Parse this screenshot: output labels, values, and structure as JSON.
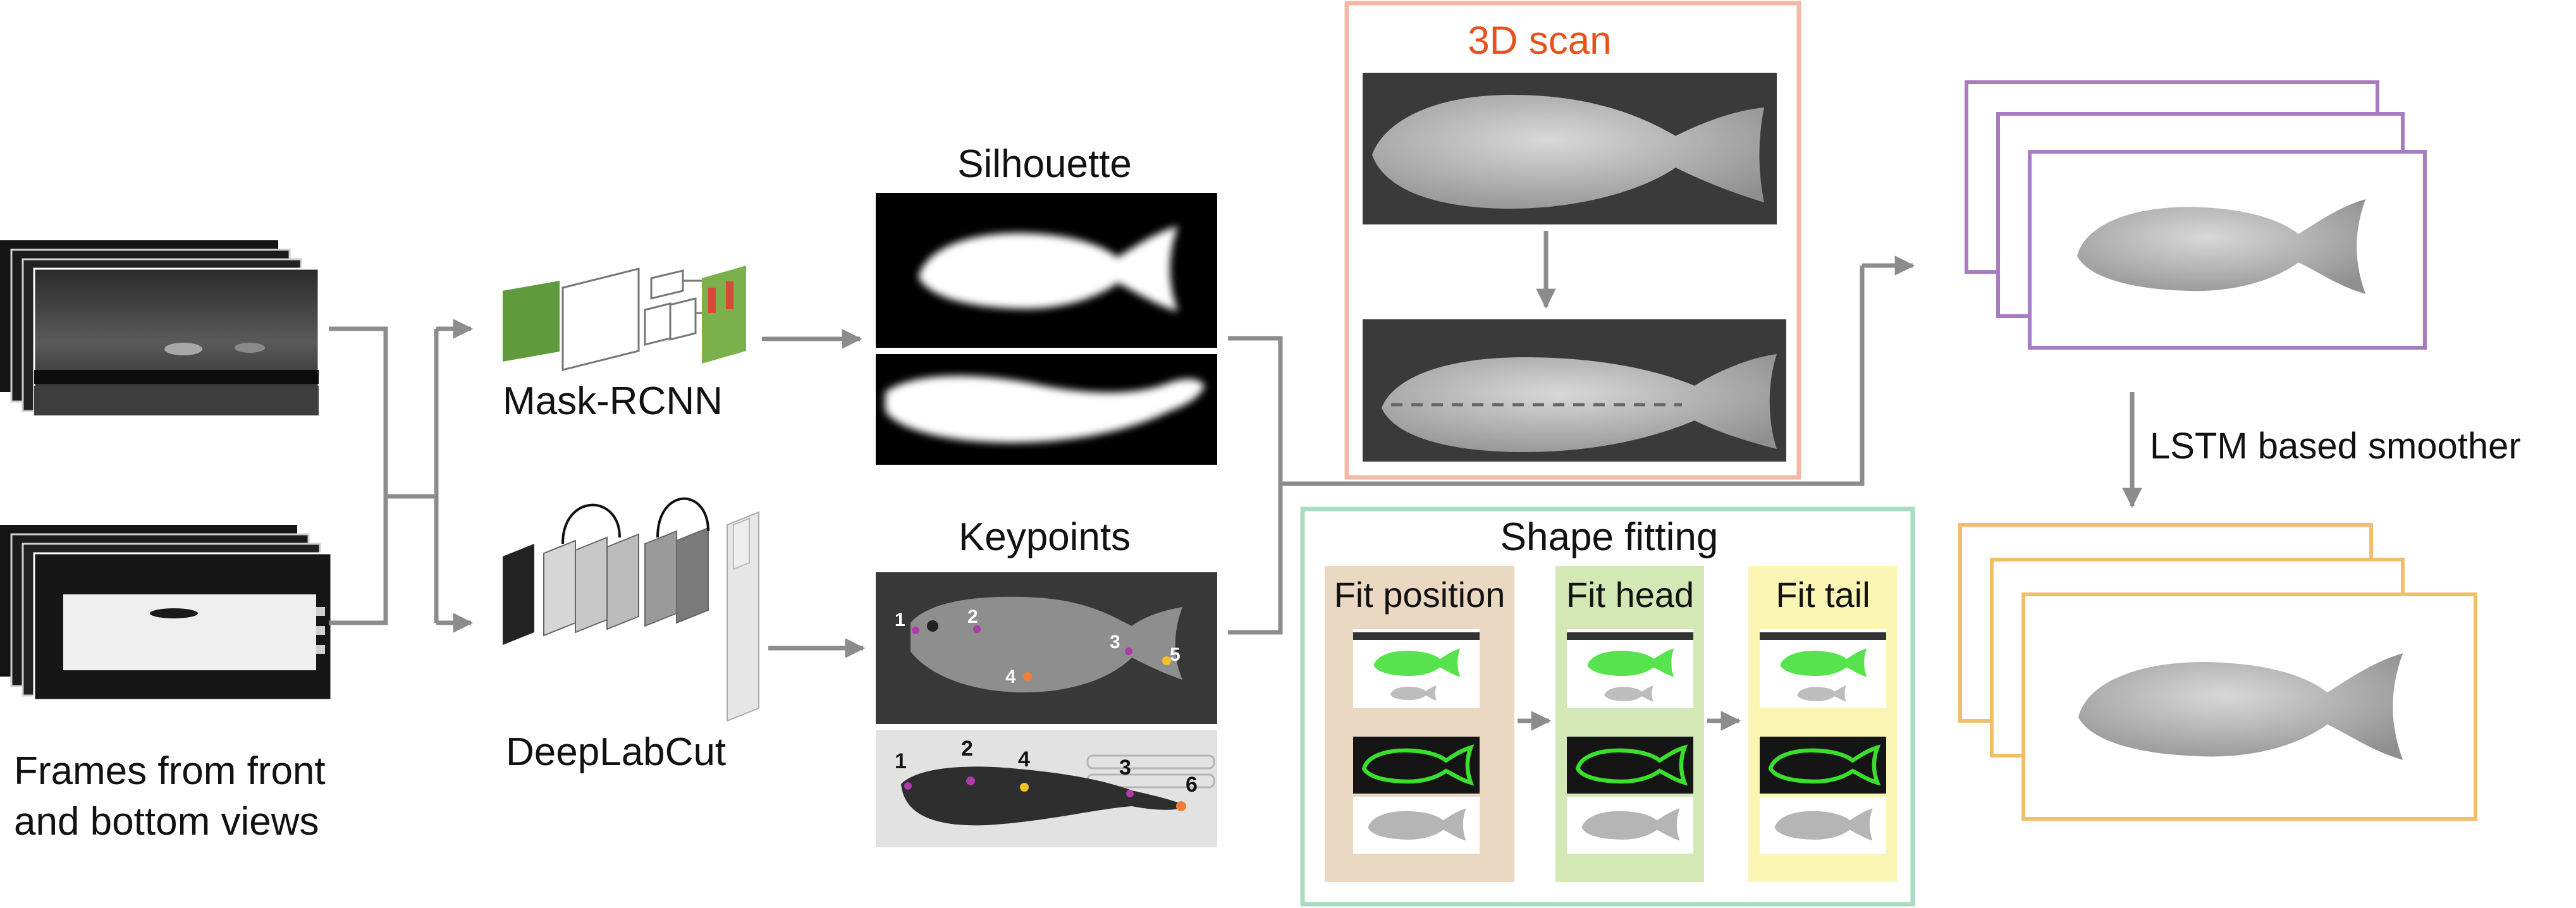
{
  "labels": {
    "frames_line1": "Frames from front",
    "frames_line2": "and bottom views",
    "mask_rcnn": "Mask-RCNN",
    "deeplabcut": "DeepLabCut",
    "silhouette": "Silhouette",
    "keypoints": "Keypoints",
    "scan_3d": "3D scan",
    "shape_fitting": "Shape fitting",
    "fit_position": "Fit position",
    "fit_head": "Fit head",
    "fit_tail": "Fit tail",
    "lstm": "LSTM based smoother"
  },
  "keypoints_side": [
    "1",
    "2",
    "3",
    "4",
    "5"
  ],
  "keypoints_bottom": [
    "1",
    "2",
    "4",
    "3",
    "6"
  ],
  "colors": {
    "arrow": "#8c8c8c",
    "scan_border": "#f4b9a5",
    "scan_title": "#e8501c",
    "fitting_border": "#a9dcc0",
    "fit_position_bg": "#ead8c3",
    "fit_head_bg": "#d3e8b5",
    "fit_tail_bg": "#fbf5b3",
    "output_purple": "#a77cc0",
    "output_orange": "#f3be6a",
    "keypoint_magenta": "#b03aa8",
    "keypoint_orange": "#f07f35",
    "keypoint_yellow": "#f2c122",
    "fit_green": "#3adf2e"
  }
}
